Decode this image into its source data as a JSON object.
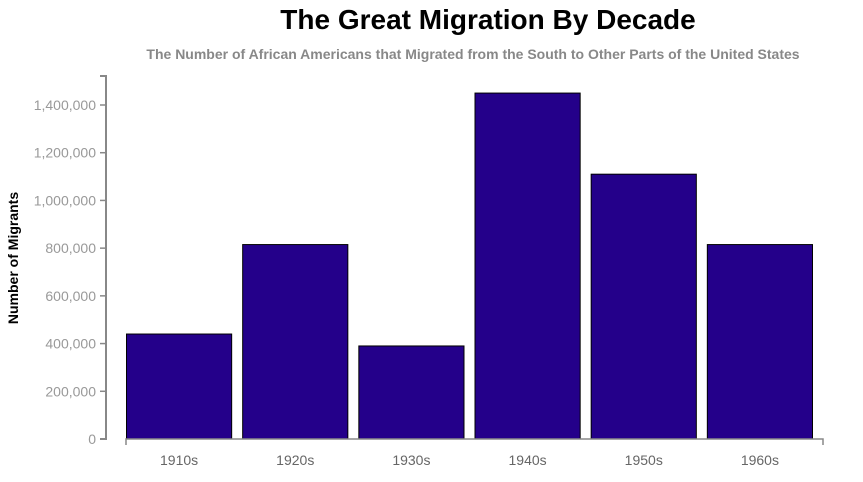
{
  "chart_data": {
    "type": "bar",
    "title": "The Great Migration By Decade",
    "subtitle": "The Number of African Americans that Migrated from the South to Other Parts of the United States",
    "xlabel": "",
    "ylabel": "Number of Migrants",
    "categories": [
      "1910s",
      "1920s",
      "1930s",
      "1940s",
      "1950s",
      "1960s"
    ],
    "values": [
      440000,
      815000,
      390000,
      1450000,
      1110000,
      815000
    ],
    "ylim": [
      0,
      1400000
    ],
    "yticks": [
      "0",
      "200,000",
      "400,000",
      "600,000",
      "800,000",
      "1,000,000",
      "1,200,000",
      "1,400,000"
    ],
    "grid": false,
    "bar_color": "#24008a"
  }
}
